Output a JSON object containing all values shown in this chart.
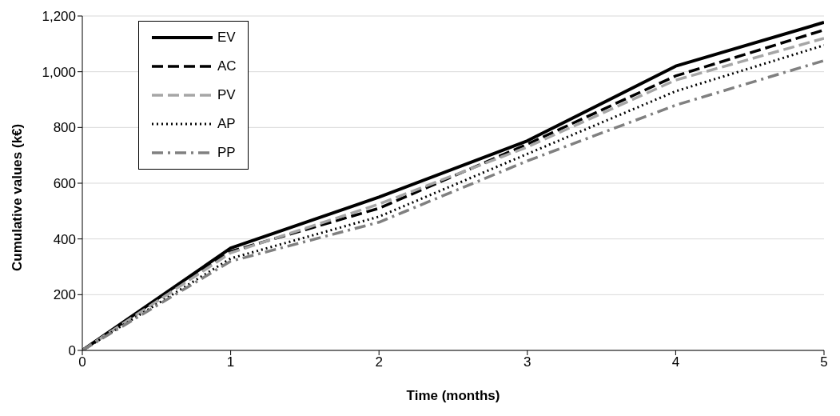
{
  "chart_data": {
    "type": "line",
    "xlabel": "Time (months)",
    "ylabel": "Cumulative values (k€)",
    "x": [
      0,
      1,
      2,
      3,
      4,
      5
    ],
    "series": [
      {
        "name": "EV",
        "color": "#000000",
        "line_style": "solid",
        "values": [
          0,
          367,
          550,
          752,
          1020,
          1177
        ]
      },
      {
        "name": "AC",
        "color": "#000000",
        "line_style": "dashed",
        "values": [
          0,
          355,
          510,
          740,
          985,
          1150
        ]
      },
      {
        "name": "PV",
        "color": "#a6a6a6",
        "line_style": "dashed",
        "values": [
          0,
          350,
          525,
          730,
          970,
          1120
        ]
      },
      {
        "name": "AP",
        "color": "#000000",
        "line_style": "dotted",
        "values": [
          0,
          330,
          480,
          705,
          930,
          1095
        ]
      },
      {
        "name": "PP",
        "color": "#808080",
        "line_style": "dashdot",
        "values": [
          0,
          320,
          460,
          680,
          880,
          1040
        ]
      }
    ],
    "xlim": [
      0,
      5
    ],
    "xticks": [
      0,
      1,
      2,
      3,
      4,
      5
    ],
    "ylim": [
      0,
      1200
    ],
    "yticks": [
      0,
      200,
      400,
      600,
      800,
      {
        "value": 1000,
        "label": "1,000"
      },
      {
        "value": 1200,
        "label": "1,200"
      }
    ],
    "grid": "y",
    "legend": "top left",
    "marker": "none"
  }
}
